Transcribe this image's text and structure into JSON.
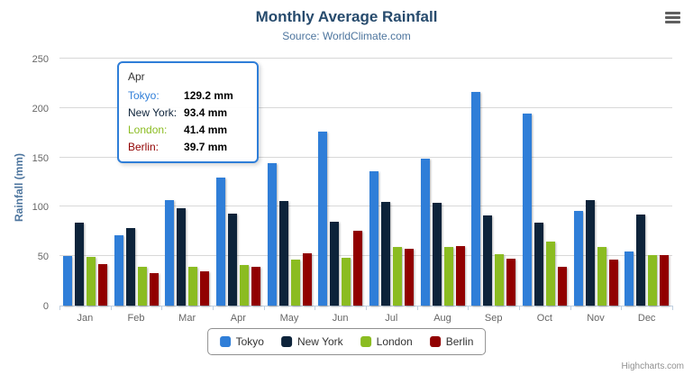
{
  "chart": {
    "title": "Monthly Average Rainfall",
    "subtitle": "Source: WorldClimate.com",
    "y_axis_title": "Rainfall (mm)",
    "credits": "Highcharts.com",
    "accent_color": "#2f7ed8"
  },
  "chart_data": {
    "type": "bar",
    "title": "Monthly Average Rainfall",
    "subtitle": "Source: WorldClimate.com",
    "xlabel": "",
    "ylabel": "Rainfall (mm)",
    "ylim": [
      0,
      250
    ],
    "yticks": [
      0,
      50,
      100,
      150,
      200,
      250
    ],
    "grid": true,
    "legend_position": "bottom",
    "categories": [
      "Jan",
      "Feb",
      "Mar",
      "Apr",
      "May",
      "Jun",
      "Jul",
      "Aug",
      "Sep",
      "Oct",
      "Nov",
      "Dec"
    ],
    "series": [
      {
        "name": "Tokyo",
        "color": "#2f7ed8",
        "values": [
          49.9,
          71.5,
          106.4,
          129.2,
          144.0,
          176.0,
          135.6,
          148.5,
          216.4,
          194.1,
          95.6,
          54.4
        ]
      },
      {
        "name": "New York",
        "color": "#0d233a",
        "values": [
          83.6,
          78.8,
          98.5,
          93.4,
          106.0,
          84.5,
          105.0,
          104.3,
          91.2,
          83.5,
          106.6,
          92.3
        ]
      },
      {
        "name": "London",
        "color": "#8bbc21",
        "values": [
          48.9,
          38.8,
          39.3,
          41.4,
          47.0,
          48.3,
          59.0,
          59.6,
          52.4,
          65.2,
          59.3,
          51.2
        ]
      },
      {
        "name": "Berlin",
        "color": "#910000",
        "values": [
          42.4,
          33.2,
          34.5,
          39.7,
          52.6,
          75.5,
          57.4,
          60.4,
          47.6,
          39.1,
          46.8,
          51.1
        ]
      }
    ]
  },
  "tooltip": {
    "header": "Apr",
    "rows": [
      {
        "name": "Tokyo:",
        "value": "129.2 mm",
        "color": "#2f7ed8"
      },
      {
        "name": "New York:",
        "value": "93.4 mm",
        "color": "#0d233a"
      },
      {
        "name": "London:",
        "value": "41.4 mm",
        "color": "#8bbc21"
      },
      {
        "name": "Berlin:",
        "value": "39.7 mm",
        "color": "#910000"
      }
    ]
  }
}
